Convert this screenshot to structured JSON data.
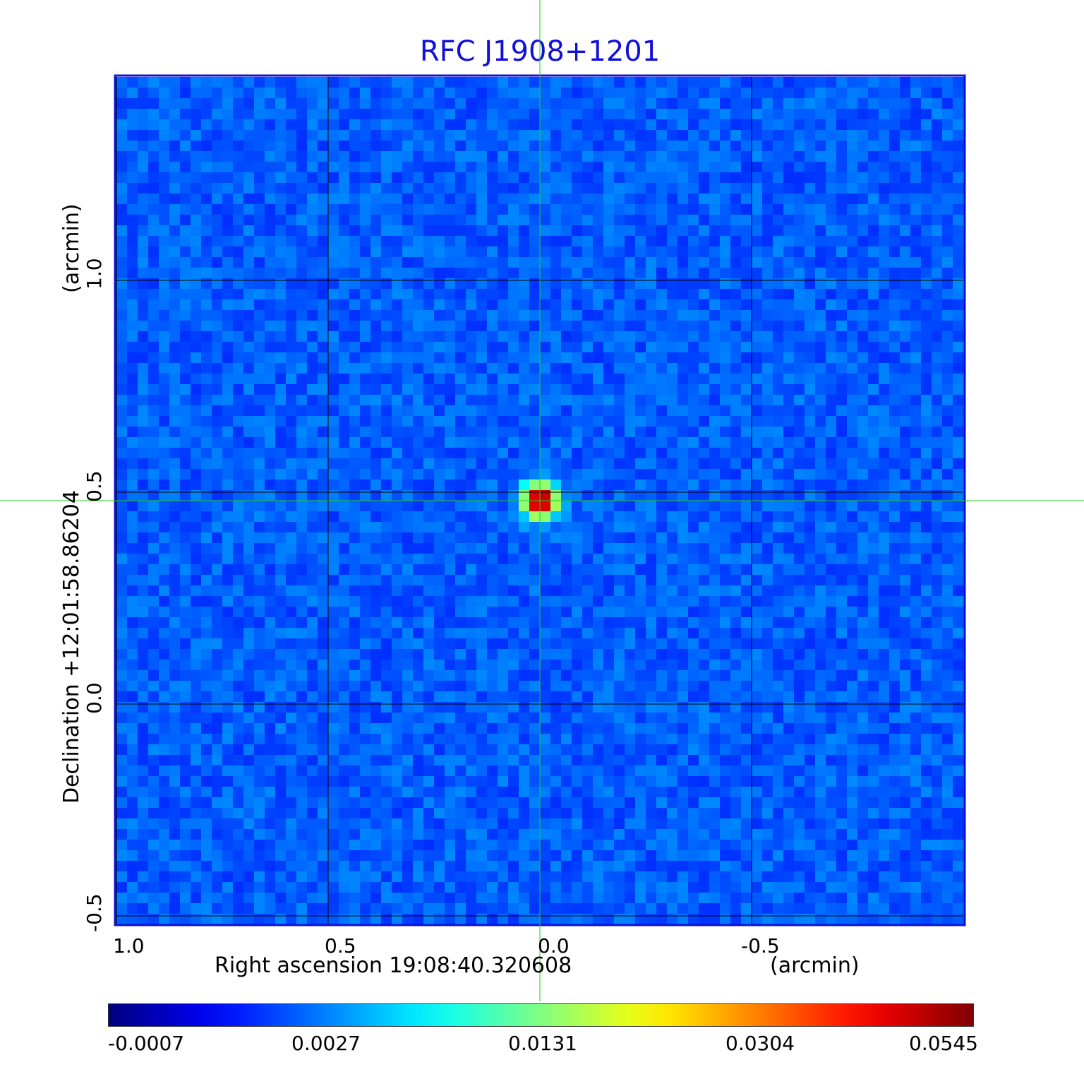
{
  "title": "RFC J1908+1201",
  "chart_data": {
    "type": "heatmap",
    "title": "RFC J1908+1201",
    "xlabel": "Right ascension  19:08:40.320608",
    "xunit": "(arcmin)",
    "ylabel": "Declination  +12:01:58.86204",
    "yunit": "(arcmin)",
    "x_ticks": [
      "1.0",
      "0.5",
      "0.0",
      "-0.5"
    ],
    "y_ticks": [
      "1.0",
      "0.5",
      "0.0",
      "-0.5"
    ],
    "x_tick_values": [
      1.0,
      0.5,
      0.0,
      -0.5
    ],
    "y_tick_values": [
      1.0,
      0.5,
      0.0,
      -0.5
    ],
    "xlim": [
      1.0,
      -1.0
    ],
    "ylim": [
      -0.52,
      1.48
    ],
    "grid": true,
    "crosshair": {
      "x": 0.0,
      "y": 0.48
    },
    "source_peak": {
      "x": 0.0,
      "y": 0.48,
      "value": 0.0545
    },
    "colorbar": {
      "colormap": "jet",
      "tick_labels": [
        "-0.0007",
        "0.0027",
        "0.0131",
        "0.0304",
        "0.0545"
      ],
      "tick_values": [
        -0.0007,
        0.0027,
        0.0131,
        0.0304,
        0.0545
      ]
    }
  },
  "colors": {
    "title": "#1010d8",
    "background_field": "#1a46f0",
    "crosshair": "#22cc22",
    "grid": "#000000"
  }
}
